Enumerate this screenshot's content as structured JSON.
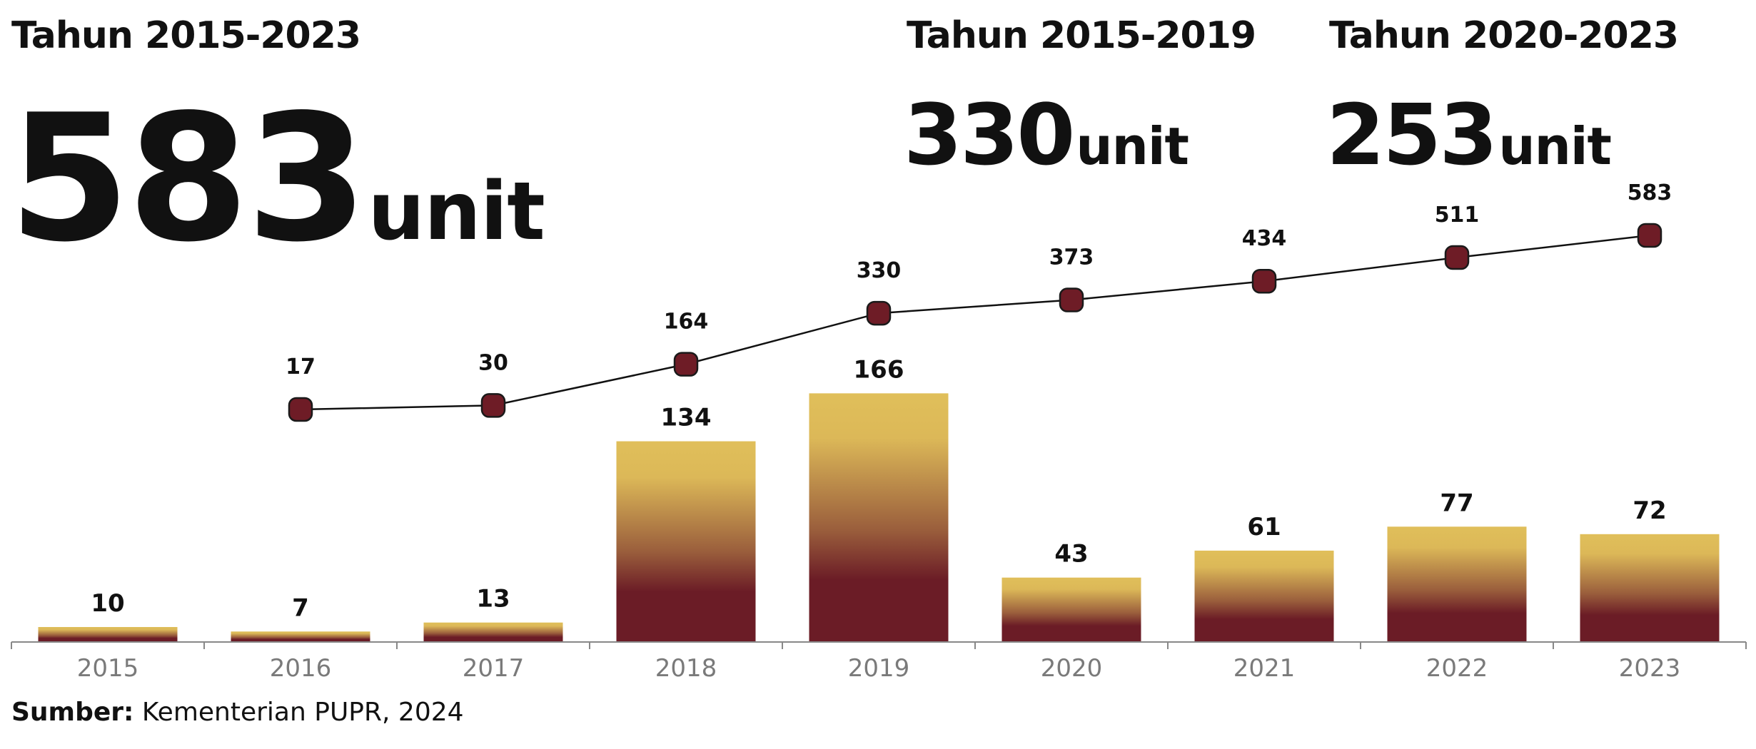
{
  "headline": {
    "main": {
      "label": "Tahun 2015-2023",
      "value": "583",
      "unit": "unit"
    },
    "left": {
      "label": "Tahun 2015-2019",
      "value": "330",
      "unit": "unit"
    },
    "right": {
      "label": "Tahun 2020-2023",
      "value": "253",
      "unit": "unit"
    }
  },
  "source": {
    "label": "Sumber:",
    "text": "Kementerian PUPR, 2024"
  },
  "colors": {
    "bar_top": "#e0bf5a",
    "bar_bottom": "#6b1c26",
    "marker": "#6e1c26",
    "line": "#111111",
    "axis": "#888888",
    "tick_text": "#7a7a7a"
  },
  "chart_data": {
    "type": "bar",
    "categories": [
      "2015",
      "2016",
      "2017",
      "2018",
      "2019",
      "2020",
      "2021",
      "2022",
      "2023"
    ],
    "series": [
      {
        "type": "bar",
        "values": [
          10,
          7,
          13,
          134,
          166,
          43,
          61,
          77,
          72
        ]
      },
      {
        "type": "line",
        "x": [
          "2016",
          "2017",
          "2018",
          "2019",
          "2020",
          "2021",
          "2022",
          "2023"
        ],
        "values": [
          17,
          30,
          164,
          330,
          373,
          434,
          511,
          583
        ]
      }
    ],
    "xlabel": "",
    "ylabel": "",
    "grid": false,
    "legend": "none"
  }
}
